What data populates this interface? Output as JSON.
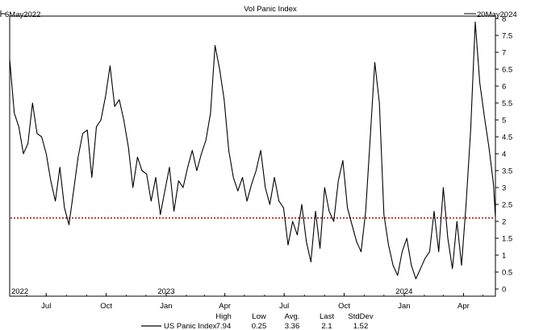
{
  "chart_data": {
    "type": "line",
    "title": "Vol Panic Index",
    "start_label": "6May2022",
    "end_label": "20May2024",
    "x_tick_labels": [
      "Jul",
      "Oct",
      "Jan",
      "Apr",
      "Jul",
      "Oct",
      "Jan",
      "Apr"
    ],
    "year_labels": [
      "2022",
      "2023",
      "2024"
    ],
    "y_ticks": [
      "0",
      "0.5",
      "1",
      "1.5",
      "2",
      "2.5",
      "3",
      "3.5",
      "4",
      "4.5",
      "5",
      "5.5",
      "6",
      "6.5",
      "7",
      "7.5",
      "8"
    ],
    "ylim": [
      0,
      8
    ],
    "reference_line": {
      "value": 2.1,
      "style": "dotted",
      "color": "#b22222"
    },
    "series": [
      {
        "name": "US Panic Index",
        "color": "#000000",
        "x": [
          "2022-05-06",
          "2022-05-13",
          "2022-05-20",
          "2022-05-27",
          "2022-06-03",
          "2022-06-10",
          "2022-06-17",
          "2022-06-24",
          "2022-07-01",
          "2022-07-08",
          "2022-07-15",
          "2022-07-22",
          "2022-07-29",
          "2022-08-05",
          "2022-08-12",
          "2022-08-19",
          "2022-08-26",
          "2022-09-02",
          "2022-09-09",
          "2022-09-16",
          "2022-09-23",
          "2022-09-30",
          "2022-10-07",
          "2022-10-14",
          "2022-10-21",
          "2022-10-28",
          "2022-11-04",
          "2022-11-11",
          "2022-11-18",
          "2022-11-25",
          "2022-12-02",
          "2022-12-09",
          "2022-12-16",
          "2022-12-23",
          "2022-12-30",
          "2023-01-06",
          "2023-01-13",
          "2023-01-20",
          "2023-01-27",
          "2023-02-03",
          "2023-02-10",
          "2023-02-17",
          "2023-02-24",
          "2023-03-03",
          "2023-03-10",
          "2023-03-17",
          "2023-03-24",
          "2023-03-31",
          "2023-04-07",
          "2023-04-14",
          "2023-04-21",
          "2023-04-28",
          "2023-05-05",
          "2023-05-12",
          "2023-05-19",
          "2023-05-26",
          "2023-06-02",
          "2023-06-09",
          "2023-06-16",
          "2023-06-23",
          "2023-06-30",
          "2023-07-07",
          "2023-07-14",
          "2023-07-21",
          "2023-07-28",
          "2023-08-04",
          "2023-08-11",
          "2023-08-18",
          "2023-08-25",
          "2023-09-01",
          "2023-09-08",
          "2023-09-15",
          "2023-09-22",
          "2023-09-29",
          "2023-10-06",
          "2023-10-13",
          "2023-10-20",
          "2023-10-27",
          "2023-11-03",
          "2023-11-10",
          "2023-11-17",
          "2023-11-24",
          "2023-12-01",
          "2023-12-08",
          "2023-12-15",
          "2023-12-22",
          "2023-12-29",
          "2024-01-05",
          "2024-01-12",
          "2024-01-19",
          "2024-01-26",
          "2024-02-02",
          "2024-02-09",
          "2024-02-16",
          "2024-02-23",
          "2024-03-01",
          "2024-03-08",
          "2024-03-15",
          "2024-03-22",
          "2024-03-29",
          "2024-04-05",
          "2024-04-12",
          "2024-04-19",
          "2024-04-26",
          "2024-05-03",
          "2024-05-10",
          "2024-05-17",
          "2024-05-20"
        ],
        "values": [
          6.8,
          5.2,
          4.8,
          4.0,
          4.3,
          5.5,
          4.6,
          4.5,
          4.0,
          3.2,
          2.6,
          3.6,
          2.4,
          1.9,
          2.9,
          3.9,
          4.6,
          4.7,
          3.3,
          4.8,
          5.0,
          5.7,
          6.6,
          5.4,
          5.6,
          5.0,
          4.2,
          3.0,
          3.9,
          3.5,
          3.4,
          2.6,
          3.3,
          2.2,
          2.9,
          3.6,
          2.3,
          3.2,
          3.0,
          3.6,
          4.1,
          3.5,
          4.0,
          4.4,
          5.2,
          7.2,
          6.5,
          5.6,
          4.1,
          3.3,
          2.9,
          3.3,
          2.6,
          3.1,
          3.5,
          4.1,
          3.0,
          2.5,
          3.3,
          2.6,
          2.4,
          1.3,
          2.0,
          1.6,
          2.5,
          1.4,
          0.8,
          2.3,
          1.2,
          3.0,
          2.3,
          2.0,
          3.2,
          3.8,
          2.4,
          1.9,
          1.4,
          1.1,
          2.3,
          4.5,
          6.7,
          5.5,
          2.2,
          1.3,
          0.7,
          0.4,
          1.1,
          1.5,
          0.7,
          0.3,
          0.6,
          0.9,
          1.1,
          2.3,
          1.1,
          3.0,
          1.5,
          0.6,
          2.0,
          0.7,
          2.5,
          4.7,
          7.9,
          6.1,
          5.1,
          4.2,
          3.1,
          2.1
        ]
      }
    ],
    "legend": {
      "placement": "bottom"
    },
    "stats": {
      "headers": [
        "High",
        "Low",
        "Avg.",
        "Last",
        "StdDev"
      ],
      "values": [
        "7.94",
        "0.25",
        "3.36",
        "2.1",
        "1.52"
      ]
    }
  }
}
